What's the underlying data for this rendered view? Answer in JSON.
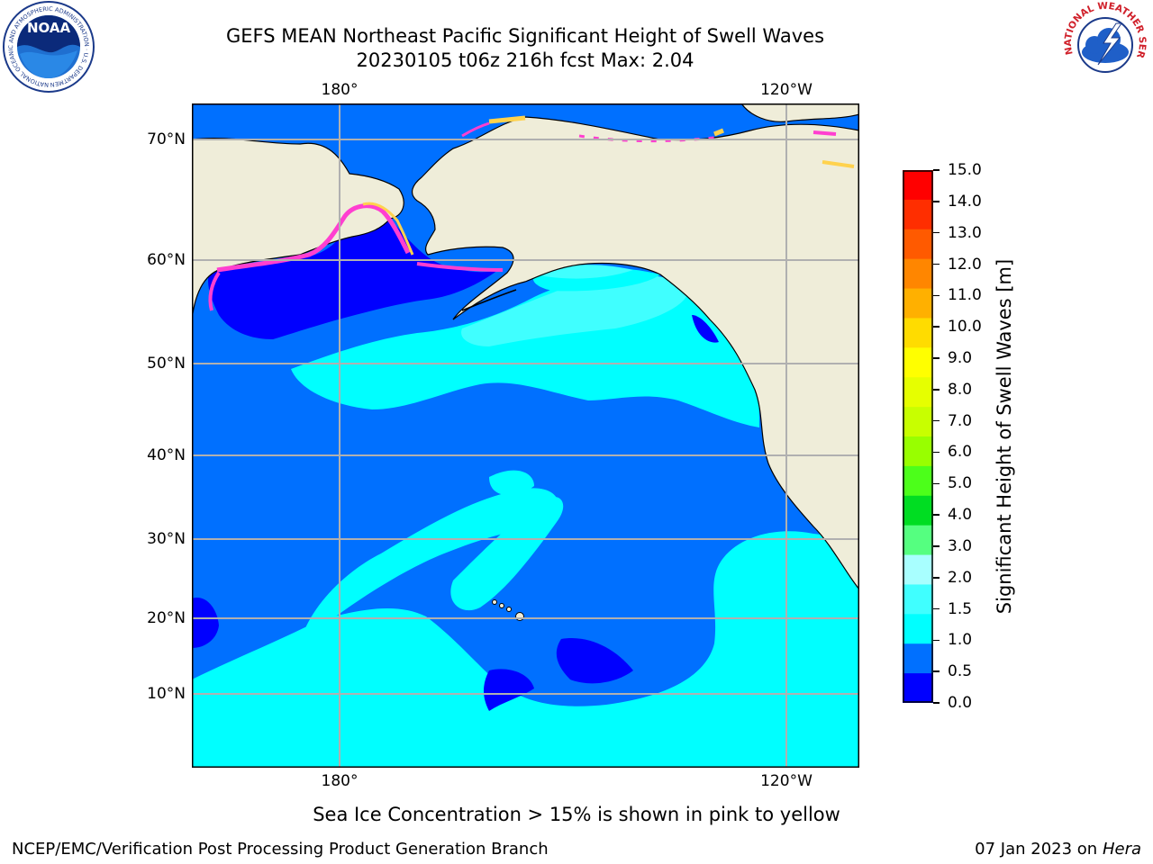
{
  "header": {
    "title_line1": "GEFS MEAN Northeast Pacific Significant Height of Swell Waves",
    "title_line2": "20230105 t06z 216h fcst   Max: 2.04"
  },
  "logos": {
    "noaa_text": "NOAA",
    "noaa_ring": "NATIONAL OCEANIC AND ATMOSPHERIC ADMINISTRATION · U.S. DEPARTMENT OF COMMERCE ·",
    "nws_ring": "NATIONAL WEATHER SERVICE ★ ★ ★"
  },
  "map": {
    "lon_ticks": [
      "180°",
      "120°W"
    ],
    "lat_ticks": [
      "70°N",
      "60°N",
      "50°N",
      "40°N",
      "30°N",
      "20°N",
      "10°N"
    ],
    "colors": {
      "land": "#efedd9",
      "sea_lt05": "#0000ff",
      "sea_05_10": "#0070ff",
      "sea_10_15": "#00ffff",
      "sea_15_20": "#40ffff",
      "ice": "#ff3fd0",
      "ice_edge": "#ffd24d",
      "grid": "#b0b0b0",
      "coast": "#000000"
    },
    "ice_note": "Sea Ice Concentration > 15% is shown in pink to yellow"
  },
  "colorbar": {
    "label": "Significant Height of Swell Waves [m]",
    "ticks": [
      "15.0",
      "14.0",
      "13.0",
      "12.0",
      "11.0",
      "10.0",
      "9.0",
      "8.0",
      "7.0",
      "6.0",
      "5.0",
      "4.0",
      "3.0",
      "2.0",
      "1.5",
      "1.0",
      "0.5",
      "0.0"
    ],
    "colors": [
      "#ff0000",
      "#ff2e00",
      "#ff5a00",
      "#ff8600",
      "#ffb000",
      "#ffdc00",
      "#ffff00",
      "#e6ff00",
      "#c8ff00",
      "#98ff00",
      "#4cff1a",
      "#00dd22",
      "#55ff80",
      "#a8ffff",
      "#40ffff",
      "#00ffff",
      "#0070ff",
      "#0000ff"
    ]
  },
  "footer": {
    "left": "NCEP/EMC/Verification Post Processing Product Generation Branch",
    "right_date": "07 Jan 2023 on ",
    "right_host": "Hera"
  }
}
